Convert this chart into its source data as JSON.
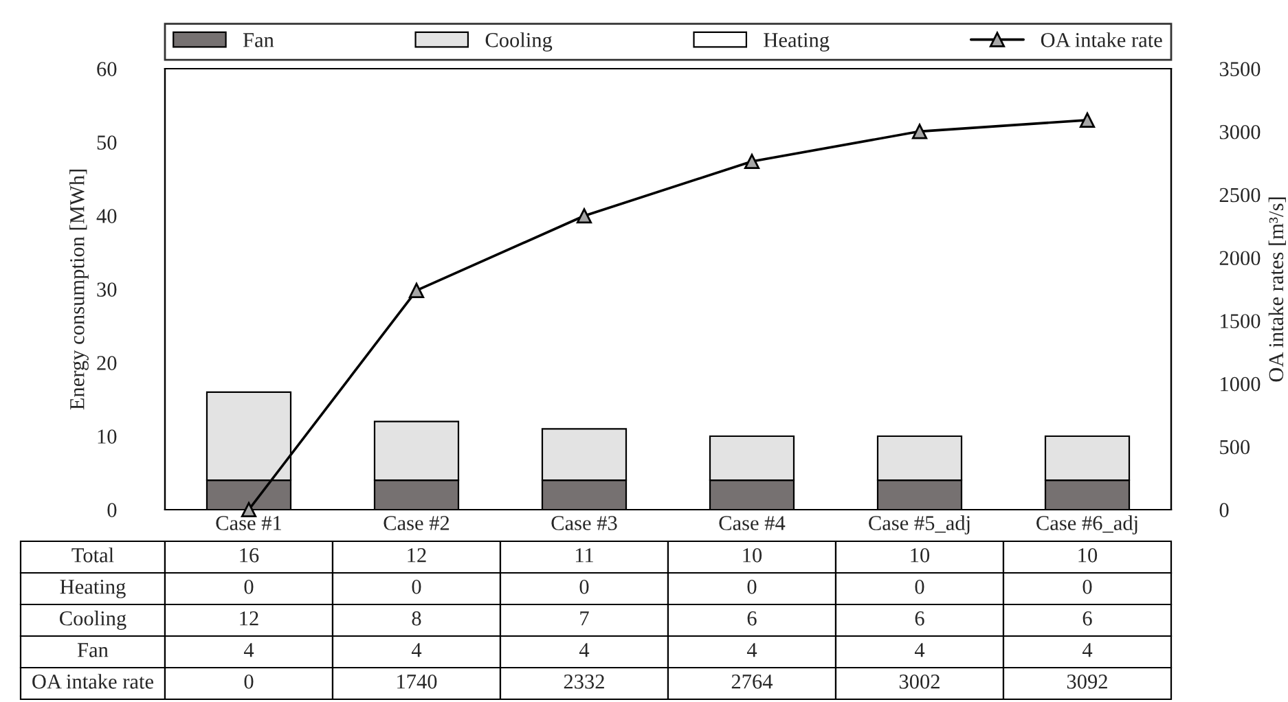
{
  "chart_data": {
    "type": "bar",
    "stacked": true,
    "categories": [
      "Case #1",
      "Case #2",
      "Case #3",
      "Case #4",
      "Case #5_adj",
      "Case #6_adj"
    ],
    "series": [
      {
        "name": "Fan",
        "color": "#767171",
        "values": [
          4,
          4,
          4,
          4,
          4,
          4
        ]
      },
      {
        "name": "Cooling",
        "color": "#e3e3e3",
        "values": [
          12,
          8,
          7,
          6,
          6,
          6
        ]
      },
      {
        "name": "Heating",
        "color": "#ffffff",
        "values": [
          0,
          0,
          0,
          0,
          0,
          0
        ]
      },
      {
        "name": "OA intake rate",
        "type": "line",
        "axis": "y2",
        "color": "#000000",
        "marker": "triangle",
        "values": [
          0,
          1740,
          2332,
          2764,
          3002,
          3092
        ]
      }
    ],
    "totals": [
      "16",
      "12",
      "11",
      "10",
      "10",
      "10"
    ],
    "annotations": [
      "Total"
    ],
    "data_labels": true,
    "ylabel": "Energy consumption [MWh]",
    "y2label": "OA intake rates [m³/s]",
    "ylim": [
      0,
      60
    ],
    "yticks": [
      0,
      10,
      20,
      30,
      40,
      50,
      60
    ],
    "y2lim": [
      0,
      3500
    ],
    "y2ticks": [
      0,
      500,
      1000,
      1500,
      2000,
      2500,
      3000,
      3500
    ],
    "grid": false,
    "legend": "top"
  }
}
